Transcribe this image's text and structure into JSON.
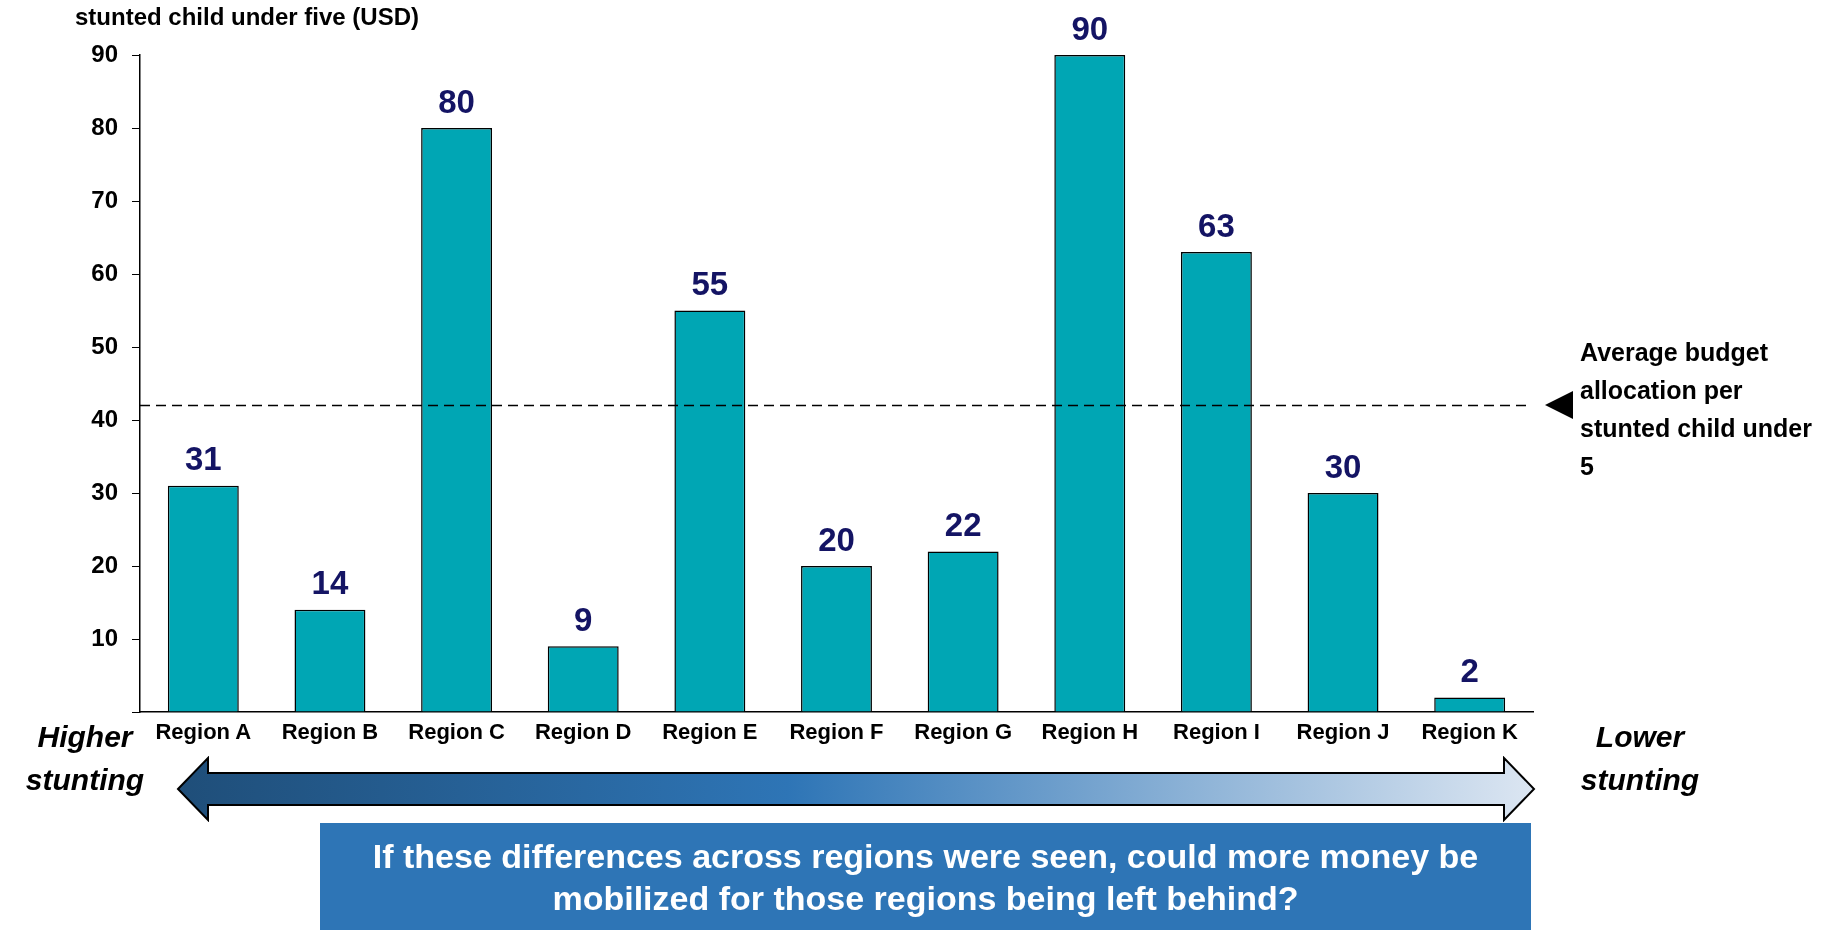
{
  "chart_data": {
    "type": "bar",
    "title": "stunted child under five (USD)",
    "categories": [
      "Region A",
      "Region B",
      "Region C",
      "Region D",
      "Region E",
      "Region F",
      "Region G",
      "Region H",
      "Region I",
      "Region J",
      "Region K"
    ],
    "values": [
      31,
      14,
      80,
      9,
      55,
      20,
      22,
      90,
      63,
      30,
      2
    ],
    "color": "#00a6b4",
    "data_labels": true,
    "ylim": [
      0,
      90
    ],
    "yticks": [
      {
        "value": 0,
        "label": null
      },
      10,
      20,
      30,
      40,
      50,
      60,
      70,
      80,
      90
    ],
    "grid": false,
    "legend": false,
    "ref_lines": [
      {
        "axis": "y",
        "value": 42,
        "label": "Average budget allocation per stunted child under 5",
        "line_style": "dashed",
        "color": "#000000"
      }
    ],
    "annotations": [
      "Higher stunting",
      "Lower stunting",
      "If these differences across regions were seen, could more money be mobilized for those regions being left behind?"
    ]
  }
}
